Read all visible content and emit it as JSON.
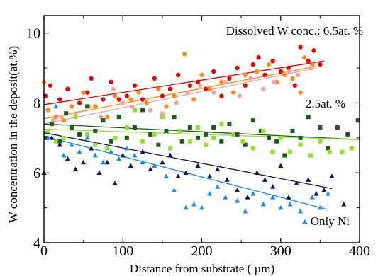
{
  "chart_data": {
    "type": "scatter",
    "xlabel": "Distance from substrate ( µm)",
    "ylabel": "W concentration in the deposit(at.%)",
    "xlim": [
      0,
      400
    ],
    "ylim": [
      4,
      10.5
    ],
    "xticks": [
      "0",
      "100",
      "200",
      "300",
      "400"
    ],
    "yticks": [
      "4",
      "6",
      "8",
      "10"
    ],
    "grid": false,
    "annotations": {
      "high": "Dissolved W conc.: 6.5at. %",
      "mid": "2.5at. %",
      "low": "Only Ni"
    },
    "series": [
      {
        "marker": "circle",
        "color": "#e60000",
        "fit": [
          [
            0,
            7.95
          ],
          [
            355,
            9.2
          ]
        ],
        "points": [
          [
            2,
            8.2
          ],
          [
            8,
            8.5
          ],
          [
            20,
            8.1
          ],
          [
            30,
            8.4
          ],
          [
            45,
            8.0
          ],
          [
            55,
            8.3
          ],
          [
            60,
            8.7
          ],
          [
            75,
            8.1
          ],
          [
            85,
            8.6
          ],
          [
            95,
            8.1
          ],
          [
            105,
            8.2
          ],
          [
            115,
            8.5
          ],
          [
            125,
            8.1
          ],
          [
            140,
            8.7
          ],
          [
            150,
            8.2
          ],
          [
            160,
            8.4
          ],
          [
            170,
            8.8
          ],
          [
            185,
            8.5
          ],
          [
            195,
            8.6
          ],
          [
            205,
            8.4
          ],
          [
            215,
            8.9
          ],
          [
            225,
            8.2
          ],
          [
            235,
            8.7
          ],
          [
            245,
            9.0
          ],
          [
            255,
            8.5
          ],
          [
            265,
            9.1
          ],
          [
            272,
            9.3
          ],
          [
            280,
            8.8
          ],
          [
            290,
            9.2
          ],
          [
            300,
            8.9
          ],
          [
            310,
            9.0
          ],
          [
            318,
            8.5
          ],
          [
            325,
            9.6
          ],
          [
            335,
            9.2
          ],
          [
            342,
            9.5
          ],
          [
            350,
            9.1
          ]
        ]
      },
      {
        "marker": "circle",
        "color": "#ff8c1a",
        "fit": [
          [
            0,
            7.55
          ],
          [
            345,
            9.05
          ]
        ],
        "points": [
          [
            0,
            8.6
          ],
          [
            5,
            7.8
          ],
          [
            15,
            7.6
          ],
          [
            25,
            7.5
          ],
          [
            35,
            7.9
          ],
          [
            50,
            8.3
          ],
          [
            65,
            7.9
          ],
          [
            80,
            7.6
          ],
          [
            90,
            8.2
          ],
          [
            110,
            8.1
          ],
          [
            120,
            8.3
          ],
          [
            130,
            8.0
          ],
          [
            145,
            8.4
          ],
          [
            155,
            7.9
          ],
          [
            165,
            8.2
          ],
          [
            178,
            9.4
          ],
          [
            190,
            8.1
          ],
          [
            200,
            8.8
          ],
          [
            210,
            8.4
          ],
          [
            225,
            8.6
          ],
          [
            240,
            8.3
          ],
          [
            255,
            8.8
          ],
          [
            270,
            8.9
          ],
          [
            285,
            9.1
          ],
          [
            295,
            8.6
          ],
          [
            305,
            8.8
          ],
          [
            315,
            8.7
          ],
          [
            325,
            8.3
          ],
          [
            330,
            9.3
          ],
          [
            340,
            9.1
          ]
        ]
      },
      {
        "marker": "circle",
        "color": "#f5a3a3",
        "fit": [
          [
            0,
            7.4
          ],
          [
            345,
            9.0
          ]
        ],
        "points": [
          [
            5,
            7.2
          ],
          [
            12,
            7.5
          ],
          [
            22,
            7.6
          ],
          [
            40,
            7.7
          ],
          [
            58,
            7.9
          ],
          [
            72,
            7.6
          ],
          [
            88,
            8.4
          ],
          [
            100,
            8.0
          ],
          [
            112,
            7.9
          ],
          [
            135,
            7.8
          ],
          [
            150,
            7.7
          ],
          [
            168,
            8.0
          ],
          [
            182,
            8.3
          ],
          [
            198,
            8.5
          ],
          [
            215,
            8.3
          ],
          [
            230,
            8.6
          ],
          [
            248,
            8.2
          ],
          [
            262,
            8.7
          ],
          [
            278,
            8.4
          ],
          [
            292,
            8.6
          ],
          [
            310,
            8.9
          ],
          [
            322,
            8.8
          ],
          [
            338,
            9.0
          ]
        ]
      },
      {
        "marker": "square",
        "color": "#1a5c1a",
        "fit": [
          [
            0,
            7.4
          ],
          [
            400,
            6.95
          ]
        ],
        "points": [
          [
            3,
            7.0
          ],
          [
            10,
            7.4
          ],
          [
            20,
            6.9
          ],
          [
            28,
            7.7
          ],
          [
            35,
            7.3
          ],
          [
            45,
            7.1
          ],
          [
            55,
            7.9
          ],
          [
            65,
            7.2
          ],
          [
            75,
            7.5
          ],
          [
            85,
            6.9
          ],
          [
            95,
            7.6
          ],
          [
            105,
            7.0
          ],
          [
            115,
            7.3
          ],
          [
            125,
            7.8
          ],
          [
            135,
            7.1
          ],
          [
            145,
            6.8
          ],
          [
            155,
            7.2
          ],
          [
            165,
            7.6
          ],
          [
            175,
            6.9
          ],
          [
            185,
            7.3
          ],
          [
            195,
            7.0
          ],
          [
            205,
            7.1
          ],
          [
            215,
            7.3
          ],
          [
            225,
            6.9
          ],
          [
            235,
            7.4
          ],
          [
            245,
            7.1
          ],
          [
            255,
            6.8
          ],
          [
            265,
            7.5
          ],
          [
            275,
            7.2
          ],
          [
            285,
            7.0
          ],
          [
            295,
            6.9
          ],
          [
            305,
            6.5
          ],
          [
            315,
            7.2
          ],
          [
            325,
            7.0
          ],
          [
            335,
            7.6
          ],
          [
            350,
            7.3
          ],
          [
            360,
            6.7
          ],
          [
            372,
            7.3
          ],
          [
            385,
            7.1
          ],
          [
            398,
            7.5
          ]
        ]
      },
      {
        "marker": "square",
        "color": "#8fe033",
        "fit": [
          [
            0,
            7.25
          ],
          [
            400,
            6.95
          ]
        ],
        "points": [
          [
            5,
            7.2
          ],
          [
            15,
            6.9
          ],
          [
            25,
            7.0
          ],
          [
            40,
            7.6
          ],
          [
            55,
            7.1
          ],
          [
            65,
            6.8
          ],
          [
            80,
            6.7
          ],
          [
            90,
            7.0
          ],
          [
            105,
            7.3
          ],
          [
            115,
            7.8
          ],
          [
            125,
            6.9
          ],
          [
            140,
            7.1
          ],
          [
            150,
            7.6
          ],
          [
            160,
            6.7
          ],
          [
            172,
            7.2
          ],
          [
            185,
            6.9
          ],
          [
            195,
            7.3
          ],
          [
            205,
            6.8
          ],
          [
            215,
            7.0
          ],
          [
            225,
            7.4
          ],
          [
            240,
            7.1
          ],
          [
            252,
            6.9
          ],
          [
            265,
            6.7
          ],
          [
            278,
            7.2
          ],
          [
            290,
            6.6
          ],
          [
            300,
            7.0
          ],
          [
            312,
            6.6
          ],
          [
            325,
            6.8
          ],
          [
            338,
            6.5
          ],
          [
            350,
            6.9
          ],
          [
            362,
            6.6
          ],
          [
            378,
            6.6
          ],
          [
            390,
            6.7
          ]
        ]
      },
      {
        "marker": "triangle",
        "color": "#14145c",
        "fit": [
          [
            0,
            7.15
          ],
          [
            365,
            5.55
          ]
        ],
        "points": [
          [
            0,
            6.0
          ],
          [
            10,
            7.0
          ],
          [
            20,
            6.8
          ],
          [
            30,
            6.4
          ],
          [
            40,
            6.1
          ],
          [
            50,
            6.3
          ],
          [
            60,
            6.7
          ],
          [
            70,
            6.0
          ],
          [
            80,
            6.3
          ],
          [
            90,
            5.7
          ],
          [
            100,
            6.5
          ],
          [
            110,
            6.2
          ],
          [
            125,
            6.6
          ],
          [
            135,
            6.1
          ],
          [
            150,
            6.3
          ],
          [
            160,
            6.5
          ],
          [
            170,
            5.9
          ],
          [
            180,
            6.0
          ],
          [
            195,
            6.2
          ],
          [
            210,
            5.9
          ],
          [
            220,
            6.1
          ],
          [
            232,
            5.8
          ],
          [
            245,
            5.5
          ],
          [
            258,
            5.3
          ],
          [
            270,
            6.0
          ],
          [
            280,
            5.8
          ],
          [
            290,
            5.6
          ],
          [
            300,
            6.2
          ],
          [
            310,
            5.3
          ],
          [
            320,
            5.7
          ],
          [
            335,
            5.8
          ],
          [
            345,
            5.4
          ],
          [
            355,
            5.5
          ],
          [
            365,
            5.9
          ],
          [
            380,
            5.1
          ]
        ]
      },
      {
        "marker": "triangle",
        "color": "#1a8ce6",
        "fit": [
          [
            0,
            7.05
          ],
          [
            360,
            4.95
          ]
        ],
        "points": [
          [
            5,
            7.0
          ],
          [
            15,
            7.9
          ],
          [
            25,
            6.5
          ],
          [
            35,
            6.8
          ],
          [
            45,
            6.6
          ],
          [
            55,
            7.0
          ],
          [
            65,
            6.5
          ],
          [
            75,
            6.3
          ],
          [
            85,
            6.6
          ],
          [
            95,
            6.4
          ],
          [
            105,
            6.7
          ],
          [
            115,
            6.5
          ],
          [
            125,
            6.3
          ],
          [
            140,
            6.2
          ],
          [
            155,
            5.9
          ],
          [
            165,
            5.5
          ],
          [
            180,
            5.0
          ],
          [
            190,
            5.1
          ],
          [
            200,
            5.0
          ],
          [
            210,
            5.4
          ],
          [
            220,
            5.6
          ],
          [
            230,
            5.3
          ],
          [
            245,
            5.2
          ],
          [
            255,
            4.9
          ],
          [
            265,
            5.4
          ],
          [
            278,
            5.1
          ],
          [
            290,
            5.3
          ],
          [
            300,
            5.0
          ],
          [
            312,
            5.1
          ],
          [
            325,
            4.9
          ],
          [
            340,
            5.3
          ],
          [
            350,
            5.0
          ],
          [
            360,
            5.4
          ]
        ]
      }
    ]
  }
}
